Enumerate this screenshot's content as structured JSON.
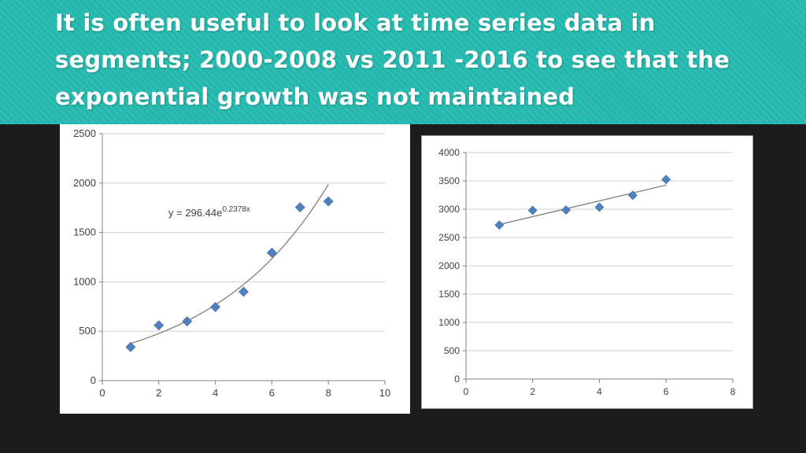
{
  "slide": {
    "title": "It is often useful to look at time series data in segments; 2000-2008 vs 2011 -2016 to see that the exponential growth was not maintained"
  },
  "colors": {
    "header_bg": "#22b8ad",
    "title_text": "#ffffff",
    "page_bg": "#1c1c1c",
    "marker": "#4f81bd",
    "trendline": "#7f7f7f",
    "gridline": "#d0d0d0"
  },
  "chart_data": [
    {
      "type": "scatter",
      "x": [
        1,
        2,
        3,
        4,
        5,
        6,
        7,
        8
      ],
      "y": [
        340,
        560,
        600,
        745,
        900,
        1295,
        1755,
        1815
      ],
      "xlim": [
        0,
        10
      ],
      "ylim": [
        0,
        2500
      ],
      "xticks": [
        0,
        2,
        4,
        6,
        8,
        10
      ],
      "yticks": [
        0,
        500,
        1000,
        1500,
        2000,
        2500
      ],
      "grid": "horizontal",
      "trendline": {
        "type": "exponential",
        "a": 296.44,
        "b": 0.2378,
        "x_range": [
          1,
          8
        ]
      },
      "annotation": {
        "text": "y = 296.44e",
        "superscript": "0.2378x"
      },
      "title": "",
      "xlabel": "",
      "ylabel": ""
    },
    {
      "type": "scatter",
      "x": [
        1,
        2,
        3,
        4,
        5,
        6
      ],
      "y": [
        2720,
        2980,
        2985,
        3035,
        3245,
        3525
      ],
      "xlim": [
        0,
        8
      ],
      "ylim": [
        0,
        4000
      ],
      "xticks": [
        0,
        2,
        4,
        6,
        8
      ],
      "yticks": [
        0,
        500,
        1000,
        1500,
        2000,
        2500,
        3000,
        3500,
        4000
      ],
      "grid": "horizontal",
      "trendline": {
        "type": "linear",
        "start": [
          1,
          2730
        ],
        "end": [
          6,
          3425
        ]
      },
      "title": "",
      "xlabel": "",
      "ylabel": ""
    }
  ]
}
